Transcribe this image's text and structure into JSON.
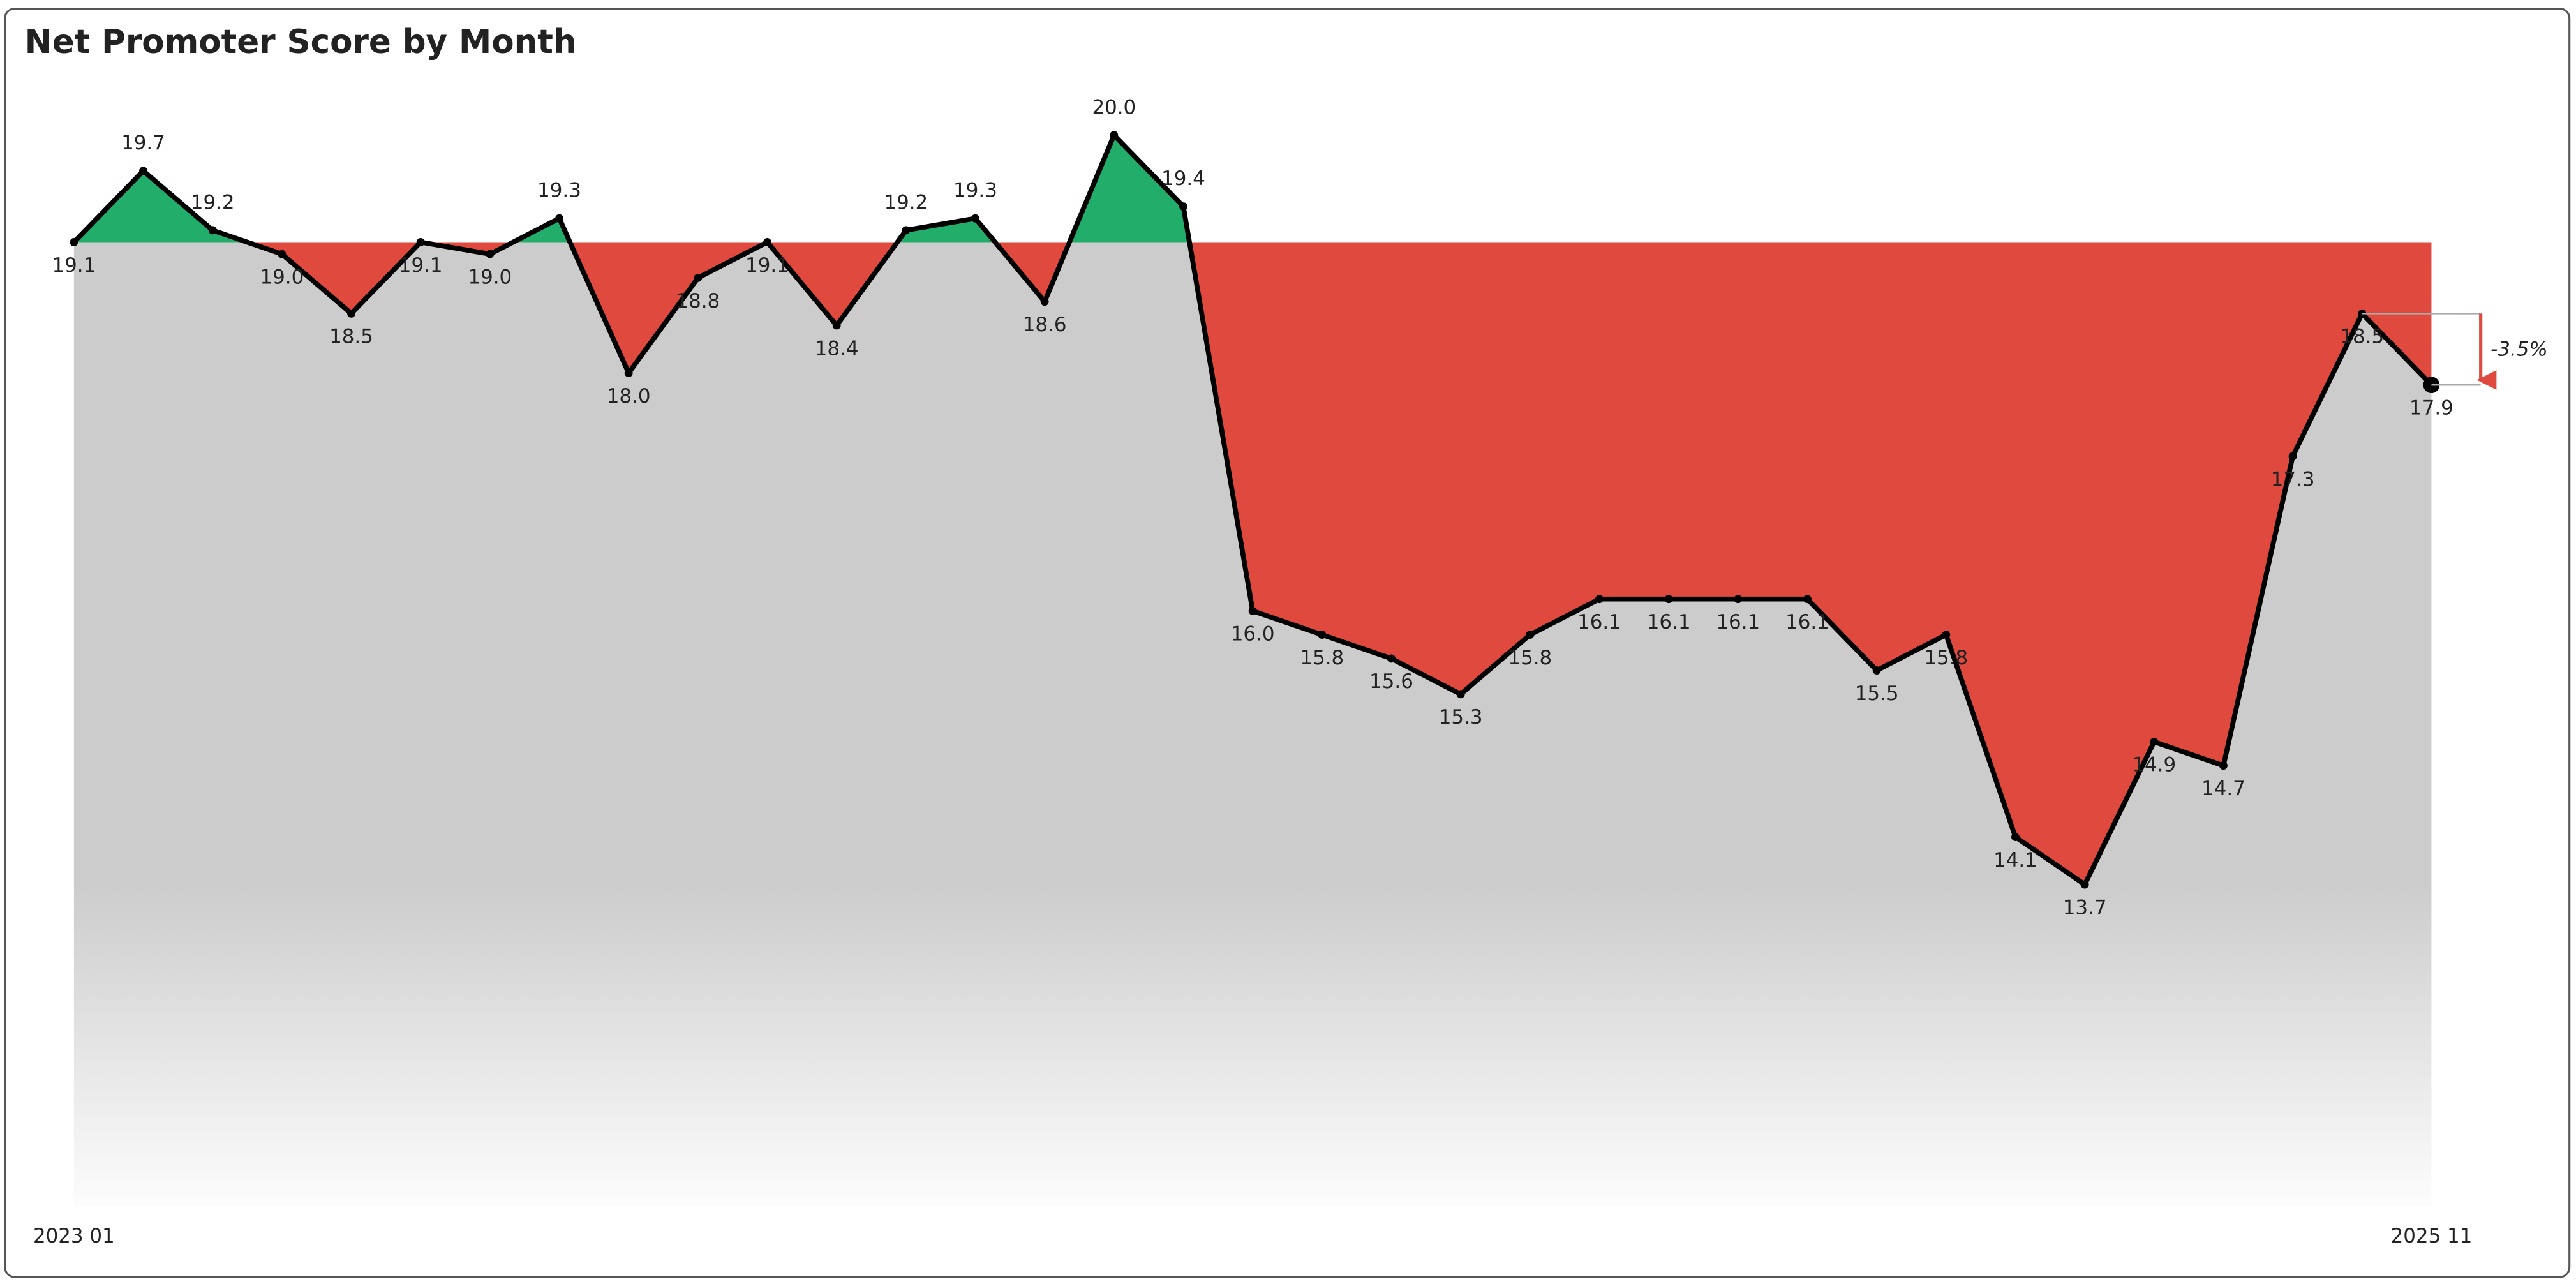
{
  "chart_data": {
    "type": "line",
    "title": "Net Promoter Score by Month",
    "categories": [
      "2023 01",
      null,
      null,
      null,
      null,
      null,
      null,
      null,
      null,
      null,
      null,
      null,
      null,
      null,
      null,
      null,
      null,
      null,
      null,
      null,
      null,
      null,
      null,
      null,
      null,
      null,
      null,
      null,
      null,
      null,
      null,
      null,
      null,
      null,
      "2025 11"
    ],
    "values": [
      19.1,
      19.7,
      19.2,
      19.0,
      18.5,
      19.1,
      19.0,
      19.3,
      18.0,
      18.8,
      19.1,
      18.4,
      19.2,
      19.3,
      18.6,
      20.0,
      19.4,
      16.0,
      15.8,
      15.6,
      15.3,
      15.8,
      16.1,
      16.1,
      16.1,
      16.1,
      15.5,
      15.8,
      14.1,
      13.7,
      14.9,
      14.7,
      17.3,
      18.5,
      17.9
    ],
    "value_labels": [
      "19.1",
      "19.7",
      "19.2",
      "19.0",
      "18.5",
      "19.1",
      "19.0",
      "19.3",
      "18.0",
      "18.8",
      "19.1",
      "18.4",
      "19.2",
      "19.3",
      "18.6",
      "20.0",
      "19.4",
      "16.0",
      "15.8",
      "15.6",
      "15.3",
      "15.8",
      "16.1",
      "16.1",
      "16.1",
      "16.1",
      "15.5",
      "15.8",
      "14.1",
      "13.7",
      "14.9",
      "14.7",
      "17.3",
      "18.5",
      "17.9"
    ],
    "color": "#000000",
    "above_color": "#22ad6b",
    "below_color": "#e0493d",
    "area_color": "#cccccc",
    "ylim": [
      11,
      20.5
    ],
    "annotation": "-3.5%"
  }
}
